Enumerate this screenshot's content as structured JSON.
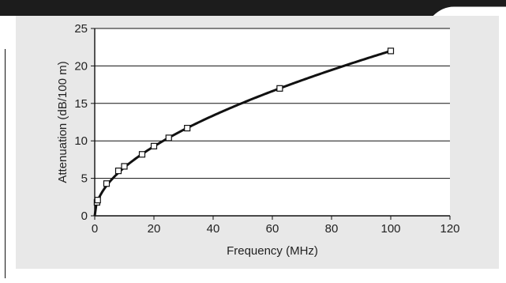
{
  "colors": {
    "header": "#1c1c1c",
    "panel": "#e8e8e8",
    "plot_area": "#ffffff",
    "gridline": "#111111",
    "curve": "#111111",
    "marker": "#111111"
  },
  "chart_data": {
    "type": "scatter",
    "title": "",
    "xlabel": "Frequency (MHz)",
    "ylabel": "Attenuation (dB/100 m)",
    "xlim": [
      0,
      120
    ],
    "ylim": [
      0,
      25
    ],
    "xticks": [
      0,
      20,
      40,
      60,
      80,
      100,
      120
    ],
    "yticks": [
      0,
      5,
      10,
      15,
      20,
      25
    ],
    "grid": "horizontal",
    "legend": "none",
    "series": [
      {
        "marker": "square",
        "x": [
          0.772,
          1,
          4,
          8,
          10,
          16,
          20,
          25,
          31.25,
          62.5,
          100
        ],
        "y": [
          1.8,
          2.1,
          4.3,
          6.0,
          6.6,
          8.2,
          9.3,
          10.4,
          11.7,
          17.0,
          22.0
        ]
      }
    ],
    "trend_curve": {
      "form": "y = a*sqrt(x) + b*x",
      "a": 1.967,
      "b": 0.0233
    }
  }
}
